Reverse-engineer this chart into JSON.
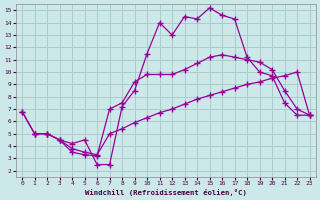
{
  "background_color": "#cce8e8",
  "grid_color": "#aacccc",
  "line_color": "#990099",
  "xlabel": "Windchill (Refroidissement éolien,°C)",
  "xlim_min": -0.5,
  "xlim_max": 23.5,
  "ylim_min": 1.5,
  "ylim_max": 15.5,
  "xticks": [
    0,
    1,
    2,
    3,
    4,
    5,
    6,
    7,
    8,
    9,
    10,
    11,
    12,
    13,
    14,
    15,
    16,
    17,
    18,
    19,
    20,
    21,
    22,
    23
  ],
  "yticks": [
    2,
    3,
    4,
    5,
    6,
    7,
    8,
    9,
    10,
    11,
    12,
    13,
    14,
    15
  ],
  "line1_x": [
    1,
    2,
    3,
    4,
    5,
    6,
    7,
    8,
    9,
    10,
    11,
    12,
    13,
    14,
    15,
    16,
    17,
    18,
    19,
    20,
    21,
    22,
    23
  ],
  "line1_y": [
    5.0,
    5.0,
    4.5,
    4.2,
    4.5,
    2.5,
    2.5,
    7.2,
    8.5,
    11.5,
    14.0,
    13.0,
    14.5,
    14.3,
    15.2,
    14.6,
    14.3,
    11.2,
    10.0,
    9.7,
    7.5,
    6.5,
    6.5
  ],
  "line2_x": [
    0,
    1,
    2,
    3,
    4,
    5,
    6,
    7,
    8,
    9,
    10,
    11,
    12,
    13,
    14,
    15,
    16,
    17,
    18,
    19,
    20,
    21,
    22,
    23
  ],
  "line2_y": [
    6.8,
    5.0,
    5.0,
    4.5,
    3.5,
    3.3,
    3.2,
    7.0,
    7.5,
    9.2,
    9.8,
    9.8,
    9.8,
    10.2,
    10.7,
    11.2,
    11.4,
    11.2,
    11.0,
    10.8,
    10.2,
    8.5,
    7.0,
    6.5
  ],
  "line3_x": [
    0,
    1,
    2,
    3,
    4,
    5,
    6,
    7,
    8,
    9,
    10,
    11,
    12,
    13,
    14,
    15,
    16,
    17,
    18,
    19,
    20,
    21,
    22,
    23
  ],
  "line3_y": [
    6.8,
    5.0,
    5.0,
    4.5,
    3.8,
    3.5,
    3.3,
    5.0,
    5.4,
    5.9,
    6.3,
    6.7,
    7.0,
    7.4,
    7.8,
    8.1,
    8.4,
    8.7,
    9.0,
    9.2,
    9.5,
    9.7,
    10.0,
    6.5
  ]
}
